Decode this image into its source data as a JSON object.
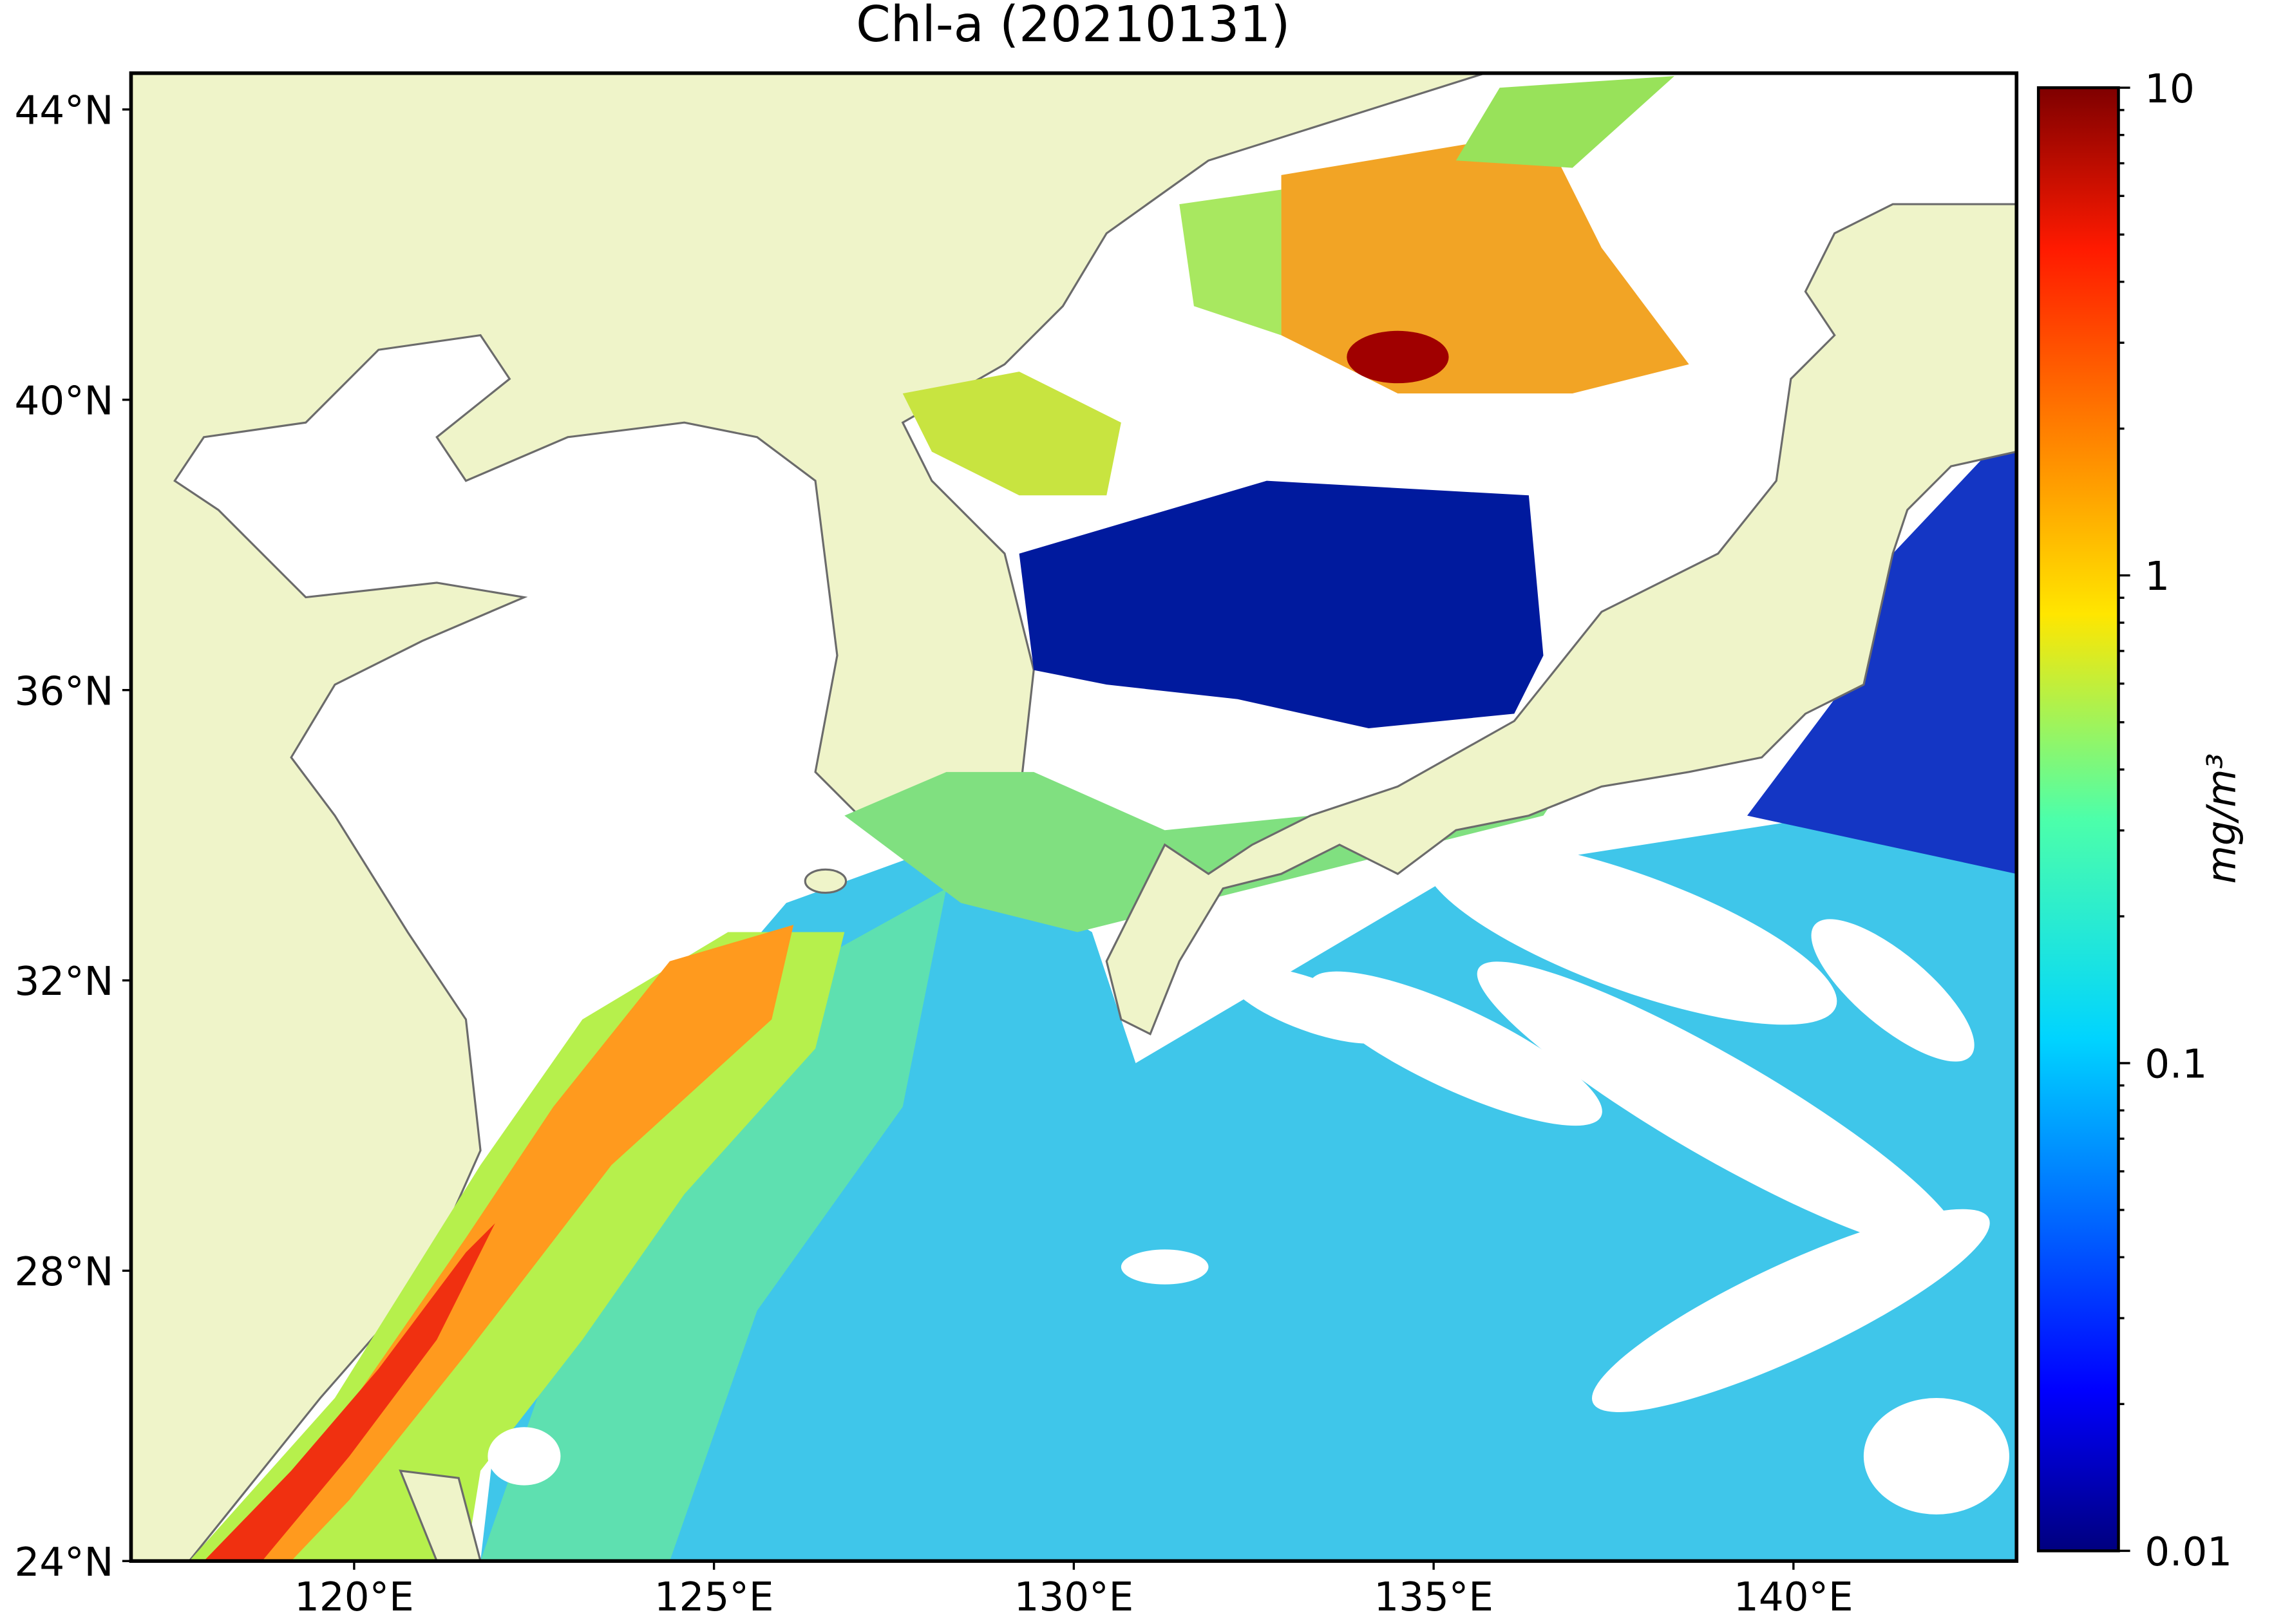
{
  "chart_data": {
    "type": "map",
    "title": "Chl-a (20210131)",
    "xlim": [
      116.9,
      143.1
    ],
    "ylim": [
      24,
      44.5
    ],
    "xticks": [
      {
        "value": 120,
        "label": "120°E"
      },
      {
        "value": 125,
        "label": "125°E"
      },
      {
        "value": 130,
        "label": "130°E"
      },
      {
        "value": 135,
        "label": "135°E"
      },
      {
        "value": 140,
        "label": "140°E"
      }
    ],
    "yticks": [
      {
        "value": 24,
        "label": "24°N"
      },
      {
        "value": 28,
        "label": "28°N"
      },
      {
        "value": 32,
        "label": "32°N"
      },
      {
        "value": 36,
        "label": "36°N"
      },
      {
        "value": 40,
        "label": "40°N"
      },
      {
        "value": 44,
        "label": "44°N"
      }
    ],
    "colorbar": {
      "label": "mg/m³",
      "scale": "log",
      "lim": [
        0.01,
        10
      ],
      "ticks": [
        0.01,
        0.1,
        1,
        10
      ],
      "minor_ticks": [
        0.02,
        0.03,
        0.04,
        0.05,
        0.06,
        0.07,
        0.08,
        0.09,
        0.2,
        0.3,
        0.4,
        0.5,
        0.6,
        0.7,
        0.8,
        0.9,
        2,
        3,
        4,
        5,
        6,
        7,
        8,
        9
      ]
    }
  }
}
